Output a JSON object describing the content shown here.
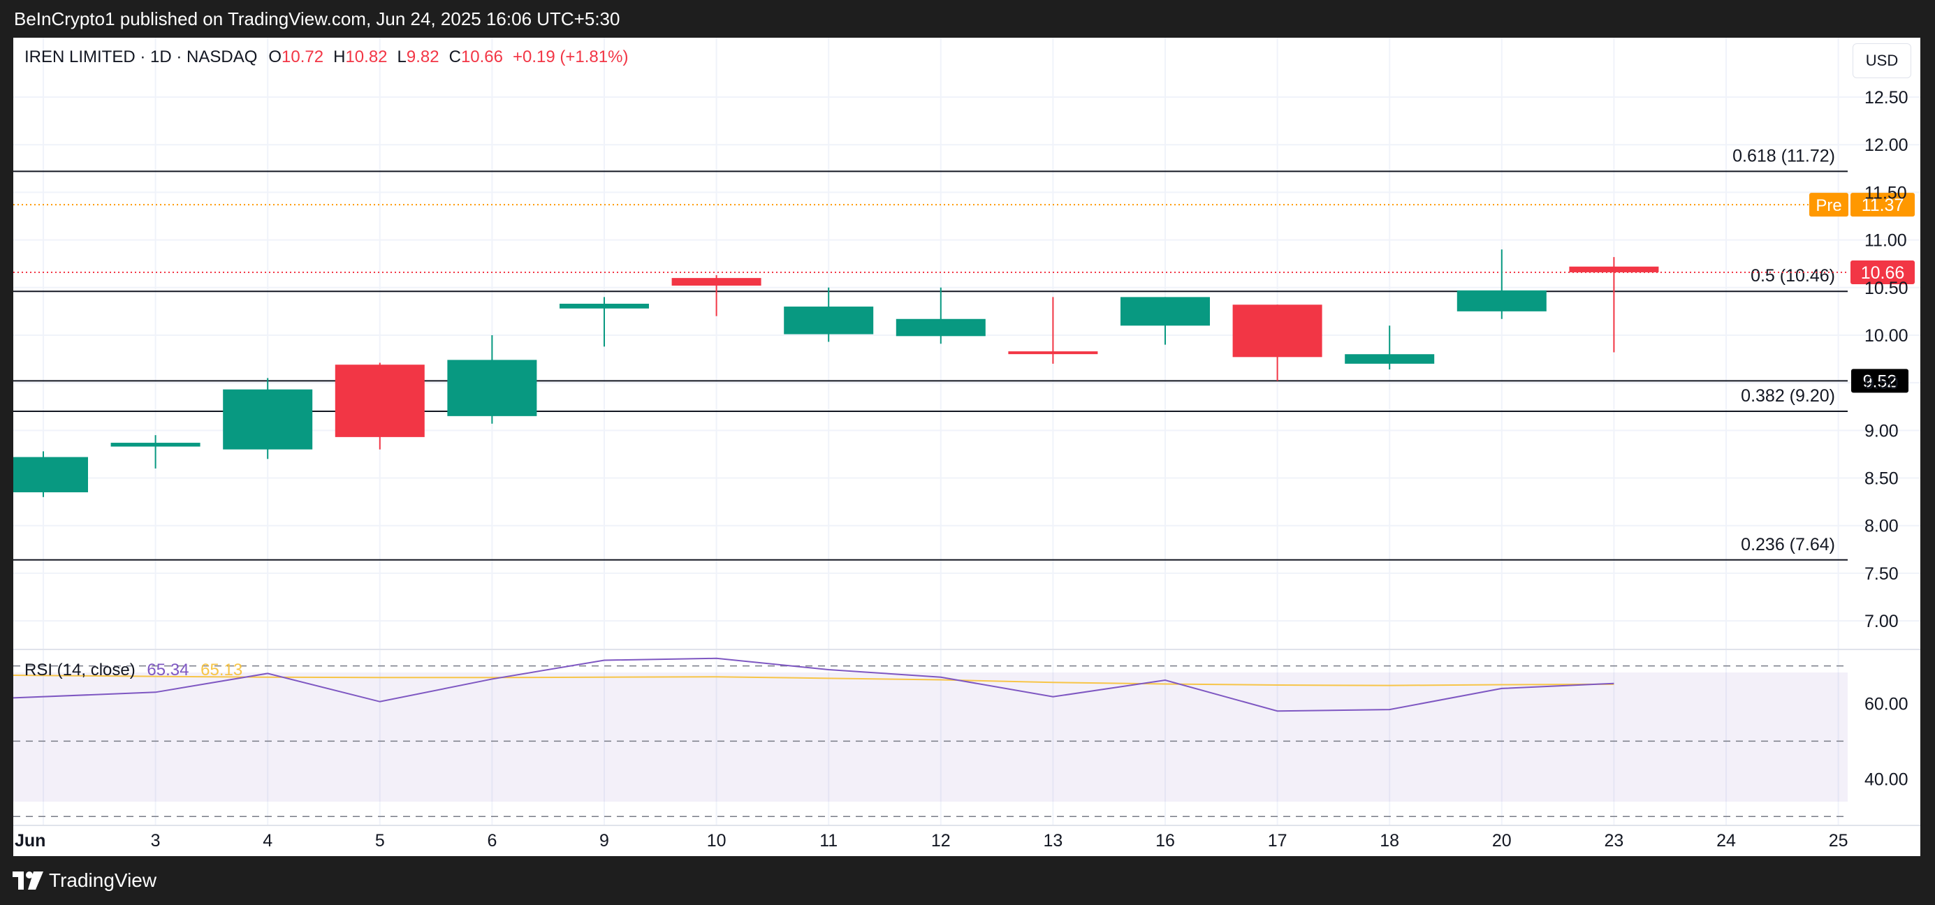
{
  "header": {
    "publisher": "BeInCrypto1 published on TradingView.com, Jun 24, 2025 16:06 UTC+5:30"
  },
  "footer": {
    "brand": "TradingView"
  },
  "symbol_legend": {
    "symbol": "IREN LIMITED · 1D · NASDAQ",
    "o_label": "O",
    "o_value": "10.72",
    "h_label": "H",
    "h_value": "10.82",
    "l_label": "L",
    "l_value": "9.82",
    "c_label": "C",
    "c_value": "10.66",
    "change": "+0.19 (+1.81%)"
  },
  "currency_button": "USD",
  "rsi_legend": {
    "label": "RSI (14, close)",
    "rsi_value": "65.34",
    "ma_value": "65.13"
  },
  "colors": {
    "up": "#089981",
    "down": "#f23645",
    "rsi_line": "#7e57c2",
    "rsi_ma": "#f7c548",
    "premarket": "#ff9800",
    "background": "#ffffff",
    "frame": "#1e1e1e"
  },
  "chart_data": {
    "type": "candlestick",
    "x_labels": [
      "Jun",
      "3",
      "4",
      "5",
      "6",
      "9",
      "10",
      "11",
      "12",
      "13",
      "16",
      "17",
      "18",
      "20",
      "23",
      "24",
      "25"
    ],
    "price_axis": {
      "ticks": [
        "7.00",
        "7.50",
        "8.00",
        "8.50",
        "9.00",
        "9.50",
        "10.00",
        "10.50",
        "11.00",
        "11.50",
        "12.00",
        "12.50"
      ],
      "ylim": [
        6.7,
        13.05
      ]
    },
    "candles": [
      {
        "date": "Jun 2",
        "o": 8.35,
        "h": 8.78,
        "l": 8.3,
        "c": 8.72
      },
      {
        "date": "Jun 3",
        "o": 8.83,
        "h": 8.95,
        "l": 8.6,
        "c": 8.87
      },
      {
        "date": "Jun 4",
        "o": 8.8,
        "h": 9.55,
        "l": 8.7,
        "c": 9.43
      },
      {
        "date": "Jun 5",
        "o": 9.69,
        "h": 9.71,
        "l": 8.8,
        "c": 8.93
      },
      {
        "date": "Jun 6",
        "o": 9.15,
        "h": 10.0,
        "l": 9.07,
        "c": 9.74
      },
      {
        "date": "Jun 9",
        "o": 10.28,
        "h": 10.4,
        "l": 9.88,
        "c": 10.33
      },
      {
        "date": "Jun 10",
        "o": 10.6,
        "h": 10.63,
        "l": 10.2,
        "c": 10.52
      },
      {
        "date": "Jun 11",
        "o": 10.01,
        "h": 10.5,
        "l": 9.93,
        "c": 10.3
      },
      {
        "date": "Jun 12",
        "o": 9.99,
        "h": 10.5,
        "l": 9.91,
        "c": 10.17
      },
      {
        "date": "Jun 13",
        "o": 9.83,
        "h": 10.4,
        "l": 9.7,
        "c": 9.81
      },
      {
        "date": "Jun 16",
        "o": 10.1,
        "h": 10.4,
        "l": 9.9,
        "c": 10.4
      },
      {
        "date": "Jun 17",
        "o": 10.32,
        "h": 10.32,
        "l": 9.52,
        "c": 9.77
      },
      {
        "date": "Jun 18",
        "o": 9.7,
        "h": 10.1,
        "l": 9.64,
        "c": 9.8
      },
      {
        "date": "Jun 20",
        "o": 10.25,
        "h": 10.9,
        "l": 10.17,
        "c": 10.47
      },
      {
        "date": "Jun 23",
        "o": 10.72,
        "h": 10.82,
        "l": 9.82,
        "c": 10.66
      }
    ],
    "fib_levels": [
      {
        "label": "0.618 (11.72)",
        "value": 11.72
      },
      {
        "label": "0.5 (10.46)",
        "value": 10.46
      },
      {
        "label": "0.382 (9.20)",
        "value": 9.2
      },
      {
        "label": "0.236 (7.64)",
        "value": 7.64
      }
    ],
    "support_line": {
      "value": 9.52,
      "label": "9.52"
    },
    "premarket": {
      "tag": "Pre",
      "value": 11.37,
      "label": "11.37"
    },
    "last_price": {
      "value": 10.66,
      "label": "10.66"
    },
    "rsi": {
      "axis_ticks": [
        "40.00",
        "60.00"
      ],
      "ylim": [
        28,
        74
      ],
      "bands": [
        70,
        50,
        30
      ],
      "rsi_values": [
        61.5,
        63,
        68,
        60.5,
        66.5,
        71.5,
        72,
        69,
        67,
        61.8,
        66.2,
        58,
        58.4,
        64,
        65.34
      ],
      "ma_values": [
        67.5,
        67.2,
        67,
        66.9,
        66.9,
        67,
        67.1,
        66.7,
        66.3,
        65.6,
        65.2,
        64.9,
        64.8,
        65.0,
        65.13
      ]
    }
  }
}
